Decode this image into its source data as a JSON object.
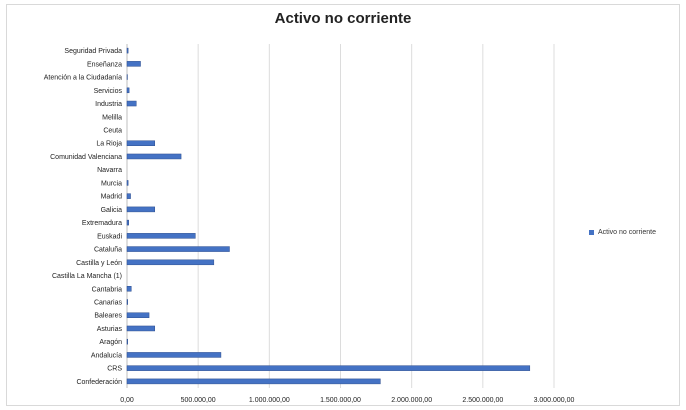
{
  "chart_data": {
    "type": "bar",
    "orientation": "horizontal",
    "title": "Activo no corriente",
    "xlabel": "",
    "ylabel": "",
    "xlim": [
      0,
      3000000
    ],
    "xticks": [
      0,
      500000,
      1000000,
      1500000,
      2000000,
      2500000,
      3000000
    ],
    "xtick_labels": [
      "0,00",
      "500.000,00",
      "1.000.000,00",
      "1.500.000,00",
      "2.000.000,00",
      "2.500.000,00",
      "3.000.000,00"
    ],
    "grid": true,
    "legend_position": "right",
    "bar_color": "#4472c4",
    "categories": [
      "Seguridad Privada",
      "Enseñanza",
      "Atención a la Ciudadanía",
      "Servicios",
      "Industria",
      "Melilla",
      "Ceuta",
      "La Rioja",
      "Comunidad Valenciana",
      "Navarra",
      "Murcia",
      "Madrid",
      "Galicia",
      "Extremadura",
      "Euskadi",
      "Cataluña",
      "Castilla y León",
      "Castilla La Mancha (1)",
      "Cantabria",
      "Canarias",
      "Baleares",
      "Asturias",
      "Aragón",
      "Andalucía",
      "CRS",
      "Confederación"
    ],
    "series": [
      {
        "name": "Activo no corriente",
        "values": [
          8000,
          95000,
          3000,
          15000,
          65000,
          0,
          0,
          195000,
          380000,
          0,
          8000,
          25000,
          195000,
          12000,
          480000,
          720000,
          610000,
          0,
          30000,
          5000,
          155000,
          195000,
          5000,
          660000,
          2830000,
          1780000
        ]
      }
    ]
  }
}
